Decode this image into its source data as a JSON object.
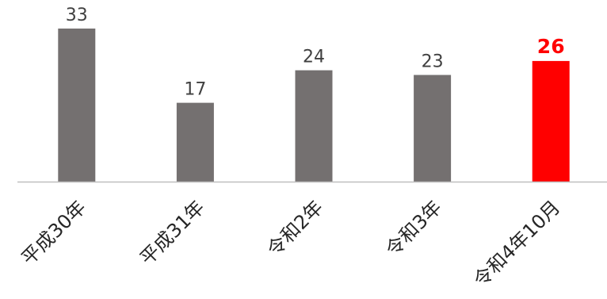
{
  "chart_data": {
    "type": "bar",
    "categories": [
      "平成30年",
      "平成31年",
      "令和2年",
      "令和3年",
      "令和4年10月"
    ],
    "values": [
      33,
      17,
      24,
      23,
      26
    ],
    "title": "",
    "xlabel": "",
    "ylabel": "",
    "ylim": [
      0,
      35
    ],
    "grid": false,
    "legend": "none",
    "data_labels": true,
    "highlight_index": 4,
    "colors": {
      "bar": "#747070",
      "highlight": "#ff0000",
      "label": "#404040",
      "highlight_label": "#ff0000",
      "axis": "#bfbfbf",
      "tick_label": "#262626"
    }
  }
}
